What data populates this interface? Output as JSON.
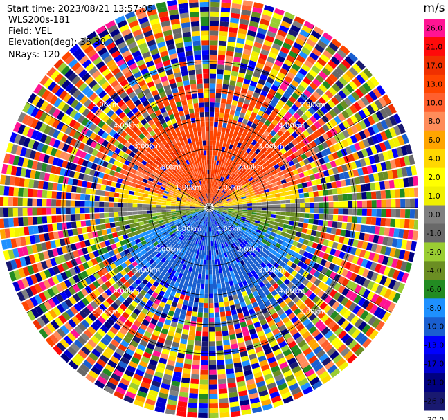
{
  "info": {
    "start_time": "Start time: 2023/08/21 13:57:05",
    "instrument": "WLS200s-181",
    "field": "Field: VEL",
    "elevation": "Elevation(deg): 35.30",
    "nrays": "NRays: 120"
  },
  "chart_data": {
    "type": "heatmap",
    "subtype": "polar-ppi",
    "field": "VEL",
    "n_rays": 120,
    "range_rings_km": [
      1.0,
      2.0,
      3.0,
      4.0,
      5.0
    ],
    "ring_labels": [
      "1.00km",
      "2.00km",
      "3.00km",
      "4.00km",
      "5.00km"
    ],
    "max_range_km": 7.2,
    "colorbar": {
      "unit": "m/s",
      "tick_labels": [
        "26.0",
        "21.0",
        "17.0",
        "13.0",
        "10.0",
        "8.0",
        "6.0",
        "4.0",
        "2.0",
        "1.0",
        "0.0",
        "-1.0",
        "-2.0",
        "-4.0",
        "-6.0",
        "-8.0",
        "-10.0",
        "-13.0",
        "-17.0",
        "-21.0",
        "-26.0",
        "-30.0"
      ],
      "colors": [
        "#ff1493",
        "#ff0a0a",
        "#f03000",
        "#ff4500",
        "#ff5f2e",
        "#ff8c5a",
        "#ffa500",
        "#ffd700",
        "#ffff00",
        "#f0f000",
        "#808080",
        "#696969",
        "#9acd32",
        "#6b8e23",
        "#228b22",
        "#1e90ff",
        "#1a5fd0",
        "#0000ff",
        "#0000cd",
        "#000080",
        "#191970"
      ]
    }
  }
}
